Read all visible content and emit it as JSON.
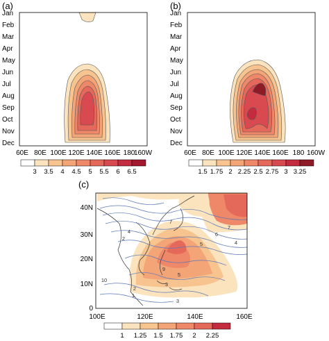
{
  "panels": {
    "a": {
      "label": "(a)",
      "months": [
        "Jan",
        "Feb",
        "Mar",
        "Apr",
        "May",
        "Jun",
        "Jul",
        "Aug",
        "Sep",
        "Oct",
        "Nov",
        "Dec"
      ],
      "lons": [
        "60E",
        "80E",
        "100E",
        "120E",
        "140E",
        "160E",
        "180",
        "160W"
      ],
      "colorbar": {
        "labels": [
          "3",
          "3.5",
          "4",
          "4.5",
          "5",
          "5.5",
          "6",
          "6.5"
        ],
        "colors": [
          "#ffffff",
          "#fbe3bd",
          "#f7c48f",
          "#f3a578",
          "#ee8869",
          "#e5695b",
          "#d84a4f",
          "#c42b3f",
          "#a31630"
        ]
      }
    },
    "b": {
      "label": "(b)",
      "months": [
        "Jan",
        "Feb",
        "Mar",
        "Apr",
        "May",
        "Jun",
        "Jul",
        "Aug",
        "Sep",
        "Oct",
        "Nov",
        "Dec"
      ],
      "lons": [
        "60E",
        "80E",
        "100E",
        "120E",
        "140E",
        "160E",
        "180",
        "160W"
      ],
      "colorbar": {
        "labels": [
          "1.5",
          "1.75",
          "2",
          "2.25",
          "2.5",
          "2.75",
          "3",
          "3.25"
        ],
        "colors": [
          "#ffffff",
          "#fbe3bd",
          "#f7c48f",
          "#f3a578",
          "#ee8869",
          "#e5695b",
          "#d84a4f",
          "#c42b3f",
          "#8e1a26"
        ]
      }
    },
    "c": {
      "label": "(c)",
      "lats": [
        "0",
        "10N",
        "20N",
        "30N",
        "40N"
      ],
      "lons": [
        "100E",
        "120E",
        "140E",
        "160E"
      ],
      "contour_labels": [
        "1",
        "2",
        "2",
        "3",
        "3",
        "4",
        "4",
        "5",
        "5",
        "6",
        "7",
        "7",
        "9",
        "10"
      ],
      "colorbar": {
        "labels": [
          "1",
          "1.25",
          "1.5",
          "1.75",
          "2",
          "2.25"
        ],
        "colors": [
          "#ffffff",
          "#fbe3bd",
          "#f7c48f",
          "#f3a578",
          "#ee8869",
          "#e5695b",
          "#c42b3f"
        ]
      }
    }
  }
}
